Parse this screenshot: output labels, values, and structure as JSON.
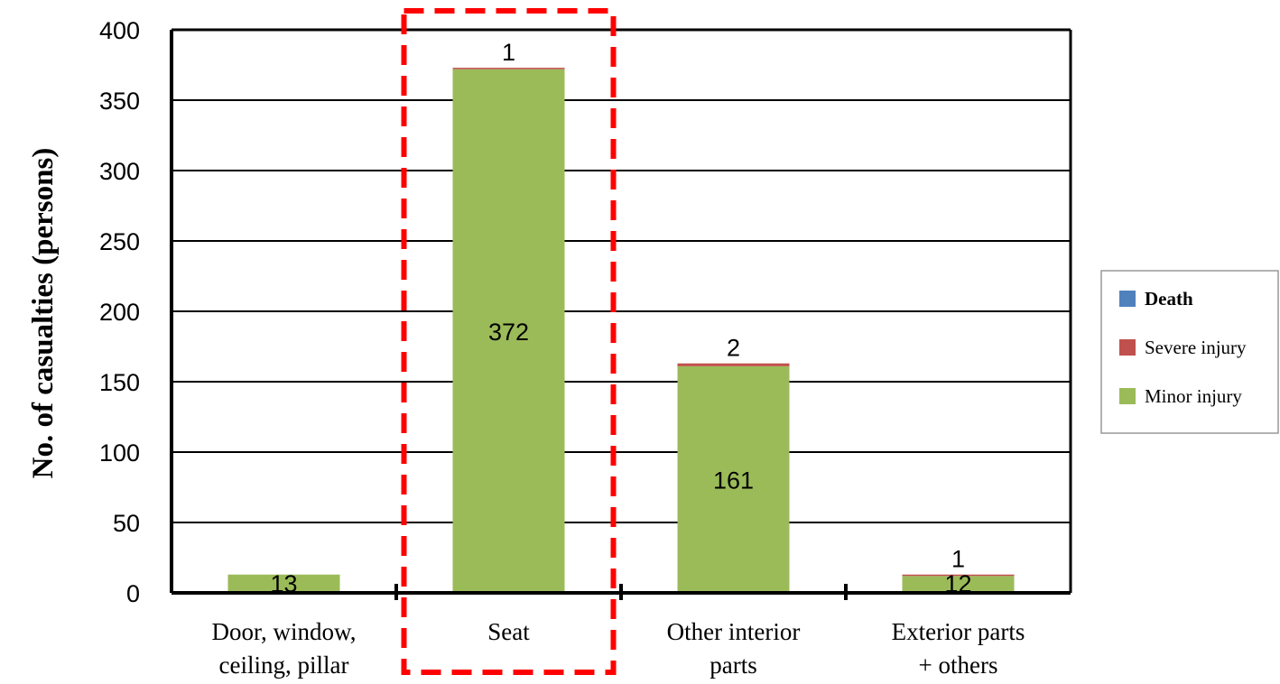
{
  "chart_data": {
    "type": "bar",
    "stacked": true,
    "categories": [
      [
        "Door, window,",
        "ceiling, pillar"
      ],
      [
        "Seat"
      ],
      [
        "Other interior",
        "parts"
      ],
      [
        "Exterior parts",
        "+ others"
      ]
    ],
    "series": [
      {
        "name": "Death",
        "color": "#4F81BD",
        "values": [
          0,
          0,
          0,
          0
        ]
      },
      {
        "name": "Severe injury",
        "color": "#C0504D",
        "values": [
          0,
          1,
          2,
          1
        ]
      },
      {
        "name": "Minor injury",
        "color": "#9BBB59",
        "values": [
          13,
          372,
          161,
          12
        ]
      }
    ],
    "data_labels": [
      {
        "category": 0,
        "series": "Minor injury",
        "text": "13"
      },
      {
        "category": 1,
        "series": "Minor injury",
        "text": "372"
      },
      {
        "category": 1,
        "series": "Severe injury",
        "text": "1"
      },
      {
        "category": 2,
        "series": "Minor injury",
        "text": "161"
      },
      {
        "category": 2,
        "series": "Severe injury",
        "text": "2"
      },
      {
        "category": 3,
        "series": "Minor injury",
        "text": "12"
      },
      {
        "category": 3,
        "series": "Severe injury",
        "text": "1"
      }
    ],
    "ylabel": "No. of casualties (persons)",
    "xlabel": "",
    "title": "",
    "ylim": [
      0,
      400
    ],
    "yticks": [
      0,
      50,
      100,
      150,
      200,
      250,
      300,
      350,
      400
    ],
    "grid": true,
    "legend_position": "right",
    "highlighted_category": 1,
    "highlight_color": "#FF0000"
  }
}
